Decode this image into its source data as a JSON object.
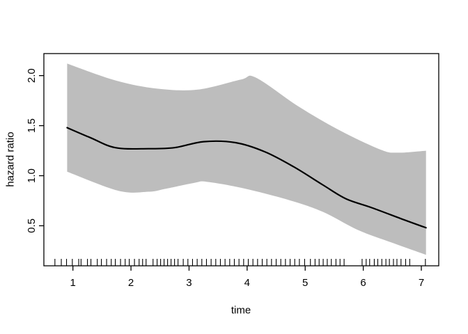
{
  "figure": {
    "background": "#ffffff",
    "border_color": "#000000",
    "text_color": "#000000"
  },
  "chart_data": {
    "type": "line",
    "title": "",
    "xlabel": "time",
    "ylabel": "hazard ratio",
    "xlim": [
      0.5,
      7.3
    ],
    "ylim": [
      0.1,
      2.22
    ],
    "grid": "off",
    "legend": "none",
    "x_ticks": {
      "values": [
        1,
        2,
        3,
        4,
        5,
        6,
        7
      ],
      "labels": [
        "1",
        "2",
        "3",
        "4",
        "5",
        "6",
        "7"
      ]
    },
    "y_ticks": {
      "values": [
        0.5,
        1.0,
        1.5,
        2.0
      ],
      "labels": [
        "0.5",
        "1.0",
        "1.5",
        "2.0"
      ]
    },
    "series": [
      {
        "name": "hazard-ratio-estimate",
        "type": "line",
        "color": "#000000",
        "stroke_width": 2.2,
        "x": [
          0.9,
          1.3,
          1.73,
          2.3,
          2.75,
          3.25,
          3.8,
          4.3,
          4.8,
          5.3,
          5.7,
          6.15,
          6.7,
          7.08
        ],
        "y": [
          1.48,
          1.38,
          1.28,
          1.27,
          1.28,
          1.34,
          1.33,
          1.24,
          1.09,
          0.91,
          0.77,
          0.68,
          0.56,
          0.48
        ]
      }
    ],
    "confidence_band": {
      "name": "confidence-band",
      "color": "#bdbdbd",
      "upper_x": [
        0.9,
        1.74,
        2.45,
        3.15,
        3.89,
        4.15,
        4.89,
        5.57,
        6.3,
        6.6,
        7.08
      ],
      "upper_y": [
        2.12,
        1.95,
        1.87,
        1.86,
        1.96,
        1.98,
        1.69,
        1.46,
        1.26,
        1.23,
        1.25
      ],
      "lower_x": [
        0.9,
        1.78,
        2.3,
        2.6,
        3.1,
        3.3,
        3.89,
        4.7,
        5.3,
        5.9,
        6.5,
        7.08
      ],
      "lower_y": [
        1.04,
        0.85,
        0.84,
        0.87,
        0.93,
        0.94,
        0.88,
        0.76,
        0.64,
        0.46,
        0.33,
        0.21
      ]
    },
    "rug": {
      "color": "#000000",
      "x": [
        0.69,
        0.8,
        0.89,
        0.99,
        1.1,
        1.14,
        1.25,
        1.31,
        1.42,
        1.49,
        1.58,
        1.66,
        1.73,
        1.82,
        1.9,
        1.97,
        2.06,
        2.14,
        2.2,
        2.26,
        2.38,
        2.45,
        2.51,
        2.57,
        2.63,
        2.69,
        2.75,
        2.81,
        2.9,
        2.98,
        3.06,
        3.14,
        3.22,
        3.3,
        3.38,
        3.46,
        3.54,
        3.62,
        3.7,
        3.78,
        3.86,
        3.94,
        4.02,
        4.1,
        4.18,
        4.26,
        4.34,
        4.42,
        4.5,
        4.58,
        4.66,
        4.74,
        4.82,
        4.9,
        4.99,
        5.09,
        5.17,
        5.24,
        5.31,
        5.38,
        5.45,
        5.53,
        5.6,
        5.67,
        5.98,
        6.05,
        6.11,
        6.19,
        6.25,
        6.32,
        6.39,
        6.45,
        6.52,
        6.58,
        6.65,
        6.73,
        6.8,
        7.07
      ]
    }
  }
}
